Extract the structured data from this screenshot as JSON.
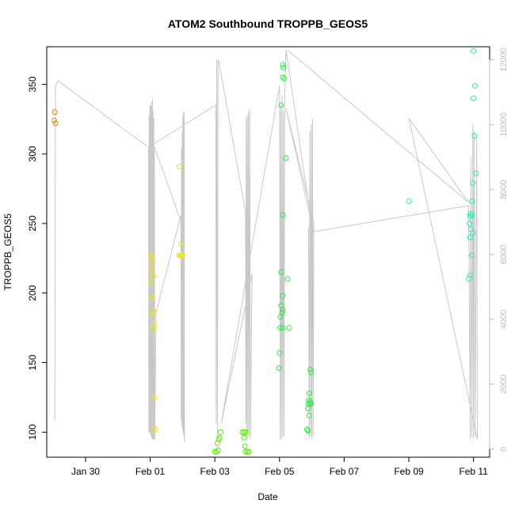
{
  "chart_data": {
    "type": "scatter",
    "title": "ATOM2 Southbound TROPPB_GEOS5",
    "xlabel": "Date",
    "ylabel": "TROPPB_GEOS5",
    "x_unit": "days since Jan 30 (tick positions)",
    "xlim": [
      -1.2,
      12.5
    ],
    "ylim": [
      82,
      377
    ],
    "y2lim": [
      -250,
      12400
    ],
    "x_ticks": [
      {
        "value": 0,
        "label": "Jan 30"
      },
      {
        "value": 2,
        "label": "Feb 01"
      },
      {
        "value": 4,
        "label": "Feb 03"
      },
      {
        "value": 6,
        "label": "Feb 05"
      },
      {
        "value": 8,
        "label": "Feb 07"
      },
      {
        "value": 10,
        "label": "Feb 09"
      },
      {
        "value": 12,
        "label": "Feb 11"
      }
    ],
    "y_ticks": [
      100,
      150,
      200,
      250,
      300,
      350
    ],
    "y2_ticks": [
      0,
      2000,
      4000,
      6000,
      8000,
      10000,
      12000
    ],
    "grid": false,
    "legend": "none",
    "series": [
      {
        "color": "#E08A10",
        "points": [
          [
            -0.95,
            330
          ],
          [
            -0.97,
            324
          ],
          [
            -0.93,
            322
          ]
        ]
      },
      {
        "color": "#E8E820",
        "points": [
          [
            2.02,
            227
          ],
          [
            2.05,
            226
          ],
          [
            2.08,
            222
          ],
          [
            2.03,
            219
          ],
          [
            2.06,
            215
          ],
          [
            2.1,
            212
          ],
          [
            2.04,
            208
          ],
          [
            2.07,
            197
          ],
          [
            2.02,
            196
          ],
          [
            2.1,
            187
          ],
          [
            2.06,
            185
          ],
          [
            2.12,
            178
          ],
          [
            2.1,
            175
          ],
          [
            2.14,
            125
          ],
          [
            2.12,
            103
          ],
          [
            2.16,
            102
          ],
          [
            2.9,
            291
          ],
          [
            2.95,
            235
          ],
          [
            2.9,
            227
          ],
          [
            2.93,
            227
          ],
          [
            2.97,
            227
          ],
          [
            3.0,
            227
          ],
          [
            2.95,
            227
          ]
        ]
      },
      {
        "color": "#5EEA10",
        "points": [
          [
            4.0,
            86
          ],
          [
            4.05,
            86
          ],
          [
            4.1,
            87
          ],
          [
            4.08,
            92
          ],
          [
            4.12,
            95
          ],
          [
            4.15,
            96
          ],
          [
            4.18,
            100
          ],
          [
            4.85,
            100
          ],
          [
            4.9,
            100
          ],
          [
            4.95,
            100
          ],
          [
            4.9,
            96
          ],
          [
            4.93,
            90
          ],
          [
            4.95,
            86
          ],
          [
            5.0,
            86
          ],
          [
            5.05,
            86
          ]
        ]
      },
      {
        "color": "#2EE84A",
        "points": [
          [
            6.1,
            364
          ],
          [
            6.12,
            362
          ],
          [
            6.1,
            355
          ],
          [
            6.15,
            354
          ],
          [
            6.05,
            335
          ],
          [
            6.2,
            297
          ],
          [
            6.1,
            256
          ],
          [
            6.05,
            215
          ],
          [
            6.25,
            210
          ],
          [
            6.1,
            198
          ],
          [
            6.05,
            191
          ],
          [
            6.1,
            188
          ],
          [
            6.08,
            186
          ],
          [
            6.03,
            183
          ],
          [
            6.02,
            175
          ],
          [
            6.1,
            175
          ],
          [
            6.3,
            175
          ],
          [
            6.0,
            157
          ],
          [
            5.98,
            146
          ],
          [
            6.95,
            145
          ],
          [
            6.98,
            143
          ],
          [
            6.92,
            128
          ],
          [
            6.9,
            123
          ],
          [
            6.95,
            122
          ],
          [
            6.97,
            121
          ],
          [
            6.9,
            120
          ],
          [
            6.95,
            120
          ],
          [
            6.88,
            117
          ],
          [
            6.92,
            112
          ],
          [
            6.85,
            102
          ],
          [
            6.88,
            101
          ]
        ]
      },
      {
        "color": "#30E8B0",
        "points": [
          [
            12.0,
            374
          ],
          [
            12.05,
            349
          ],
          [
            12.0,
            340
          ],
          [
            12.03,
            313
          ],
          [
            12.08,
            286
          ],
          [
            11.98,
            279
          ],
          [
            11.95,
            266
          ],
          [
            10.0,
            266
          ],
          [
            11.9,
            257
          ],
          [
            11.95,
            256
          ],
          [
            11.9,
            255
          ],
          [
            11.88,
            250
          ],
          [
            11.92,
            246
          ],
          [
            11.98,
            243
          ],
          [
            11.9,
            240
          ],
          [
            11.95,
            227
          ],
          [
            11.9,
            213
          ],
          [
            11.85,
            210
          ]
        ]
      }
    ],
    "altitude_trace": {
      "color": "#C8C8C8",
      "axis": "right",
      "points": [
        [
          -0.95,
          900
        ],
        [
          -0.93,
          11200
        ],
        [
          -0.85,
          11350
        ],
        [
          1.95,
          9300
        ],
        [
          1.96,
          500
        ],
        [
          1.97,
          10300
        ],
        [
          1.98,
          500
        ],
        [
          1.99,
          10600
        ],
        [
          2.0,
          500
        ],
        [
          2.01,
          10600
        ],
        [
          2.02,
          400
        ],
        [
          2.03,
          10600
        ],
        [
          2.04,
          400
        ],
        [
          2.05,
          10700
        ],
        [
          2.06,
          300
        ],
        [
          2.07,
          10800
        ],
        [
          2.08,
          300
        ],
        [
          2.09,
          10400
        ],
        [
          2.1,
          300
        ],
        [
          2.11,
          10200
        ],
        [
          2.12,
          300
        ],
        [
          2.13,
          9200
        ],
        [
          2.14,
          300
        ],
        [
          2.18,
          4200
        ],
        [
          2.95,
          7200
        ],
        [
          2.96,
          900
        ],
        [
          2.97,
          9300
        ],
        [
          2.98,
          700
        ],
        [
          2.99,
          9800
        ],
        [
          3.0,
          600
        ],
        [
          3.01,
          10200
        ],
        [
          3.02,
          500
        ],
        [
          3.03,
          10400
        ],
        [
          3.04,
          400
        ],
        [
          3.05,
          10400
        ],
        [
          3.06,
          200
        ],
        [
          2.96,
          7000
        ],
        [
          2.1,
          9400
        ],
        [
          4.03,
          10600
        ],
        [
          4.04,
          800
        ],
        [
          4.06,
          12000
        ],
        [
          4.08,
          400
        ],
        [
          4.1,
          12000
        ],
        [
          4.15,
          11800
        ],
        [
          4.95,
          7300
        ],
        [
          4.96,
          800
        ],
        [
          4.97,
          10200
        ],
        [
          4.98,
          400
        ],
        [
          5.0,
          10300
        ],
        [
          5.02,
          300
        ],
        [
          5.04,
          10400
        ],
        [
          5.06,
          400
        ],
        [
          5.08,
          10500
        ],
        [
          5.1,
          300
        ],
        [
          5.15,
          5400
        ],
        [
          4.2,
          800
        ],
        [
          6.0,
          11200
        ],
        [
          6.02,
          300
        ],
        [
          6.04,
          10600
        ],
        [
          6.06,
          300
        ],
        [
          6.08,
          10900
        ],
        [
          6.1,
          400
        ],
        [
          6.12,
          10400
        ],
        [
          6.14,
          400
        ],
        [
          6.16,
          10600
        ],
        [
          6.2,
          12300
        ],
        [
          7.0,
          6900
        ],
        [
          6.9,
          6800
        ],
        [
          6.92,
          300
        ],
        [
          6.94,
          9800
        ],
        [
          6.96,
          400
        ],
        [
          6.98,
          10000
        ],
        [
          7.0,
          300
        ],
        [
          7.02,
          10200
        ],
        [
          7.04,
          400
        ],
        [
          7.06,
          7000
        ],
        [
          6.2,
          10500
        ],
        [
          7.05,
          6700
        ],
        [
          11.85,
          7500
        ],
        [
          11.9,
          300
        ],
        [
          11.92,
          9000
        ],
        [
          11.95,
          400
        ],
        [
          11.98,
          10000
        ],
        [
          12.0,
          300
        ],
        [
          12.02,
          9800
        ],
        [
          12.05,
          400
        ],
        [
          12.1,
          9600
        ],
        [
          12.12,
          300
        ],
        [
          10.0,
          10200
        ],
        [
          11.85,
          7600
        ],
        [
          6.25,
          12300
        ]
      ]
    }
  }
}
